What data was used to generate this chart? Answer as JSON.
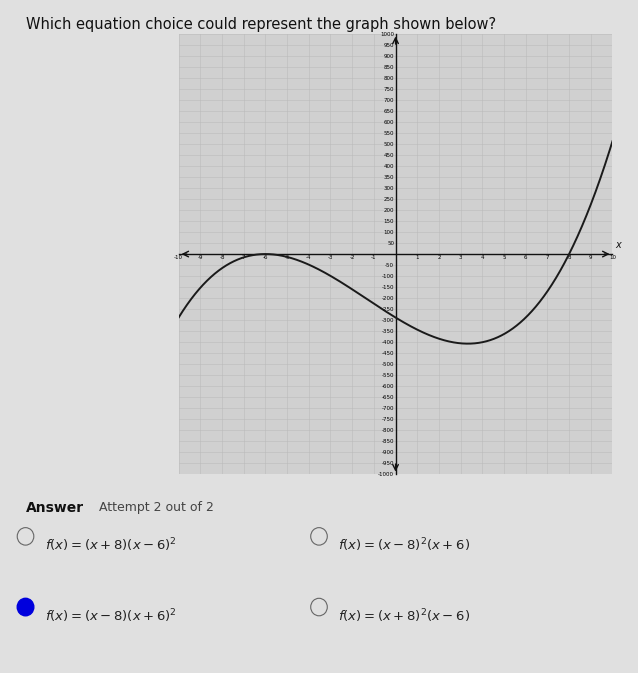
{
  "title": "Which equation choice could represent the graph shown below?",
  "title_fontsize": 10.5,
  "answer_label": "Answer",
  "attempt_label": "Attempt 2 out of 2",
  "choices": [
    {
      "text": "f(x) = (x + 8)(x − 6)²",
      "selected": false
    },
    {
      "text": "f(x) = (x − 8)²(x + 6)",
      "selected": false
    },
    {
      "text": "f(x) = (x − 8)(x + 6)²",
      "selected": true
    },
    {
      "text": "f(x) = (x + 8)²(x − 6)",
      "selected": false
    }
  ],
  "choice_texts_latex": [
    "f(x) = (x + 8)(x - 6)^{2}",
    "f(x) = (x - 8)^{2}(x + 6)",
    "f(x) = (x - 8)(x + 6)^{2}",
    "f(x) = (x + 8)^{2}(x - 6)"
  ],
  "function": "(x - 8) * (x + 6)**2",
  "xmin": -10,
  "xmax": 10,
  "ymin": -1000,
  "ymax": 1000,
  "ytick_step": 50,
  "xtick_step": 1,
  "grid_color": "#bbbbbb",
  "curve_color": "#1a1a1a",
  "background_color": "#e0e0e0",
  "plot_bg_color": "#d0d0d0",
  "axis_color": "#111111",
  "selected_color": "#0000dd",
  "unselected_color": "#444444"
}
